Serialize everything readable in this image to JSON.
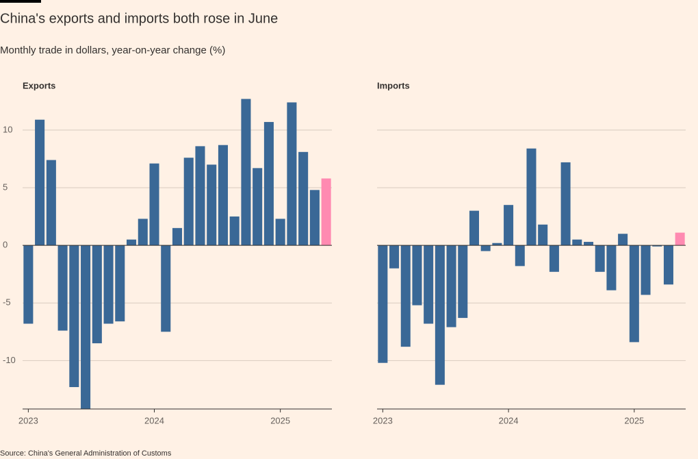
{
  "title": "China's exports and imports both rose in June",
  "subtitle": "Monthly trade in dollars, year-on-year change (%)",
  "source": "Source: China's General Administration of Customs",
  "chart_data": [
    {
      "type": "bar",
      "title": "Exports",
      "x": [
        0,
        1,
        2,
        3,
        4,
        5,
        6,
        7,
        8,
        9,
        10,
        11,
        12,
        13,
        14,
        15,
        16,
        17,
        18,
        19,
        20,
        21,
        22,
        23,
        24,
        25,
        26
      ],
      "values": [
        -6.8,
        10.9,
        7.4,
        -7.4,
        -12.3,
        -14.5,
        -8.5,
        -6.8,
        -6.6,
        0.5,
        2.3,
        7.1,
        -7.5,
        1.5,
        7.6,
        8.6,
        7.0,
        8.7,
        2.5,
        12.7,
        6.7,
        10.7,
        2.3,
        12.4,
        8.1,
        4.8,
        5.8
      ],
      "colors": [
        "#3a6896",
        "#3a6896",
        "#3a6896",
        "#3a6896",
        "#3a6896",
        "#3a6896",
        "#3a6896",
        "#3a6896",
        "#3a6896",
        "#3a6896",
        "#3a6896",
        "#3a6896",
        "#3a6896",
        "#3a6896",
        "#3a6896",
        "#3a6896",
        "#3a6896",
        "#3a6896",
        "#3a6896",
        "#3a6896",
        "#3a6896",
        "#3a6896",
        "#3a6896",
        "#3a6896",
        "#3a6896",
        "#3a6896",
        "#ff8ab1"
      ],
      "xlim": [
        -0.5,
        26.5
      ],
      "xticks": [
        {
          "value": 0,
          "label": "2023"
        },
        {
          "value": 11,
          "label": "2024"
        },
        {
          "value": 22,
          "label": "2025"
        }
      ],
      "ylim": [
        -14.2,
        13.2
      ],
      "yticks": [
        -10,
        -5,
        0,
        5,
        10
      ],
      "grid": true,
      "ytick_labels": true
    },
    {
      "type": "bar",
      "title": "Imports",
      "x": [
        0,
        1,
        2,
        3,
        4,
        5,
        6,
        7,
        8,
        9,
        10,
        11,
        12,
        13,
        14,
        15,
        16,
        17,
        18,
        19,
        20,
        21,
        22,
        23,
        24,
        25,
        26
      ],
      "values": [
        -10.2,
        -2.0,
        -8.8,
        -5.2,
        -6.8,
        -12.1,
        -7.1,
        -6.3,
        3.0,
        -0.5,
        0.2,
        3.5,
        -1.8,
        8.4,
        1.8,
        -2.3,
        7.2,
        0.5,
        0.3,
        -2.3,
        -3.9,
        1.0,
        -8.4,
        -4.3,
        -0.1,
        -3.4,
        1.1
      ],
      "colors": [
        "#3a6896",
        "#3a6896",
        "#3a6896",
        "#3a6896",
        "#3a6896",
        "#3a6896",
        "#3a6896",
        "#3a6896",
        "#3a6896",
        "#3a6896",
        "#3a6896",
        "#3a6896",
        "#3a6896",
        "#3a6896",
        "#3a6896",
        "#3a6896",
        "#3a6896",
        "#3a6896",
        "#3a6896",
        "#3a6896",
        "#3a6896",
        "#3a6896",
        "#3a6896",
        "#3a6896",
        "#3a6896",
        "#3a6896",
        "#ff8ab1"
      ],
      "xlim": [
        -0.5,
        26.5
      ],
      "xticks": [
        {
          "value": 0,
          "label": "2023"
        },
        {
          "value": 11,
          "label": "2024"
        },
        {
          "value": 22,
          "label": "2025"
        }
      ],
      "ylim": [
        -14.2,
        13.2
      ],
      "yticks": [
        -10,
        -5,
        0,
        5,
        10
      ],
      "grid": true,
      "ytick_labels": false
    }
  ]
}
